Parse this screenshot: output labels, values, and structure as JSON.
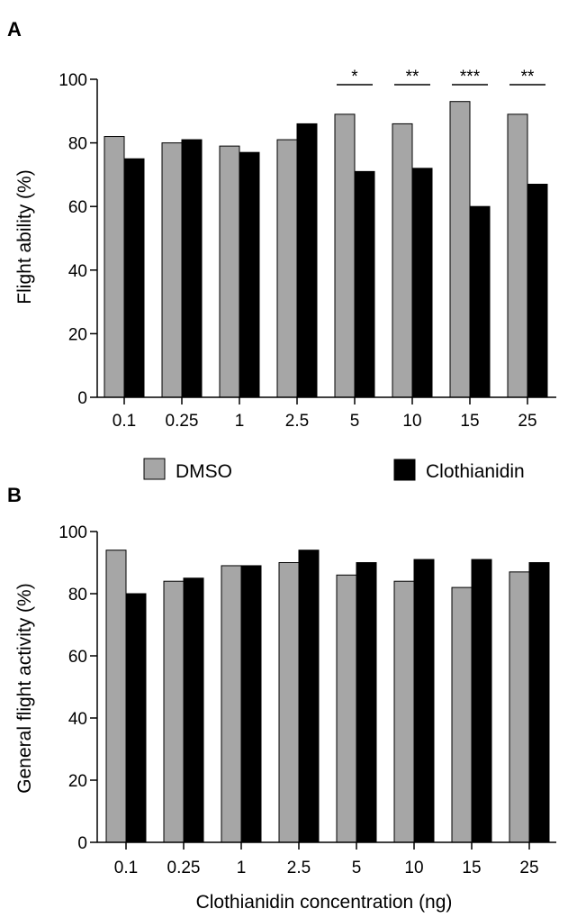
{
  "figure": {
    "legend": [
      {
        "label": "DMSO",
        "color": "#a6a6a6"
      },
      {
        "label": "Clothianidin",
        "color": "#000000"
      }
    ]
  },
  "chart_data": [
    {
      "panel": "A",
      "type": "bar",
      "categories": [
        "0.1",
        "0.25",
        "1",
        "2.5",
        "5",
        "10",
        "15",
        "25"
      ],
      "series": [
        {
          "name": "DMSO",
          "values": [
            82,
            80,
            79,
            81,
            89,
            86,
            93,
            89
          ],
          "color": "#a6a6a6"
        },
        {
          "name": "Clothianidin",
          "values": [
            75,
            81,
            77,
            86,
            71,
            72,
            60,
            67
          ],
          "color": "#000000"
        }
      ],
      "ylabel": "Flight ability (%)",
      "xlabel": "",
      "ylim": [
        0,
        100
      ],
      "yticks": [
        0,
        20,
        40,
        60,
        80,
        100
      ],
      "significance": [
        {
          "category": "5",
          "label": "*"
        },
        {
          "category": "10",
          "label": "**"
        },
        {
          "category": "15",
          "label": "***"
        },
        {
          "category": "25",
          "label": "**"
        }
      ]
    },
    {
      "panel": "B",
      "type": "bar",
      "categories": [
        "0.1",
        "0.25",
        "1",
        "2.5",
        "5",
        "10",
        "15",
        "25"
      ],
      "series": [
        {
          "name": "DMSO",
          "values": [
            94,
            84,
            89,
            90,
            86,
            84,
            82,
            87
          ],
          "color": "#a6a6a6"
        },
        {
          "name": "Clothianidin",
          "values": [
            80,
            85,
            89,
            94,
            90,
            91,
            91,
            90
          ],
          "color": "#000000"
        }
      ],
      "ylabel": "General flight activity (%)",
      "xlabel": "Clothianidin concentration (ng)",
      "ylim": [
        0,
        100
      ],
      "yticks": [
        0,
        20,
        40,
        60,
        80,
        100
      ],
      "significance": []
    }
  ]
}
